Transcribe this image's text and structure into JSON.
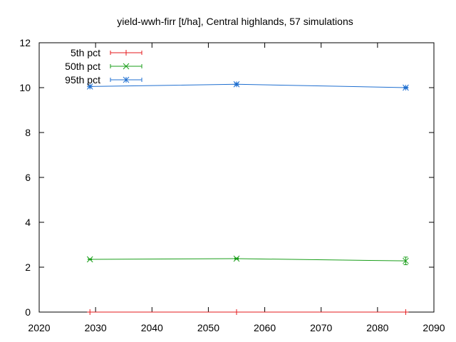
{
  "chart_data": {
    "type": "line",
    "title": "yield-wwh-firr [t/ha], Central highlands, 57 simulations",
    "xlabel": "",
    "ylabel": "",
    "xlim": [
      2020,
      2090
    ],
    "ylim": [
      0,
      12
    ],
    "xticks": [
      2020,
      2030,
      2040,
      2050,
      2060,
      2070,
      2080,
      2090
    ],
    "yticks": [
      0,
      2,
      4,
      6,
      8,
      10,
      12
    ],
    "x": [
      2029,
      2055,
      2085
    ],
    "grid": false,
    "legend_position": "top-left",
    "series": [
      {
        "name": "5th pct",
        "color": "#e41a1c",
        "marker": "plus",
        "values": [
          0,
          0,
          0
        ],
        "error": [
          0,
          0,
          0
        ]
      },
      {
        "name": "50th pct",
        "color": "#1a9e1a",
        "marker": "x",
        "values": [
          2.35,
          2.38,
          2.28
        ],
        "error": [
          0.02,
          0.03,
          0.17
        ]
      },
      {
        "name": "95th pct",
        "color": "#1f6fd0",
        "marker": "star",
        "values": [
          10.05,
          10.15,
          10.0
        ],
        "error": [
          0.05,
          0.05,
          0.03
        ]
      }
    ]
  }
}
